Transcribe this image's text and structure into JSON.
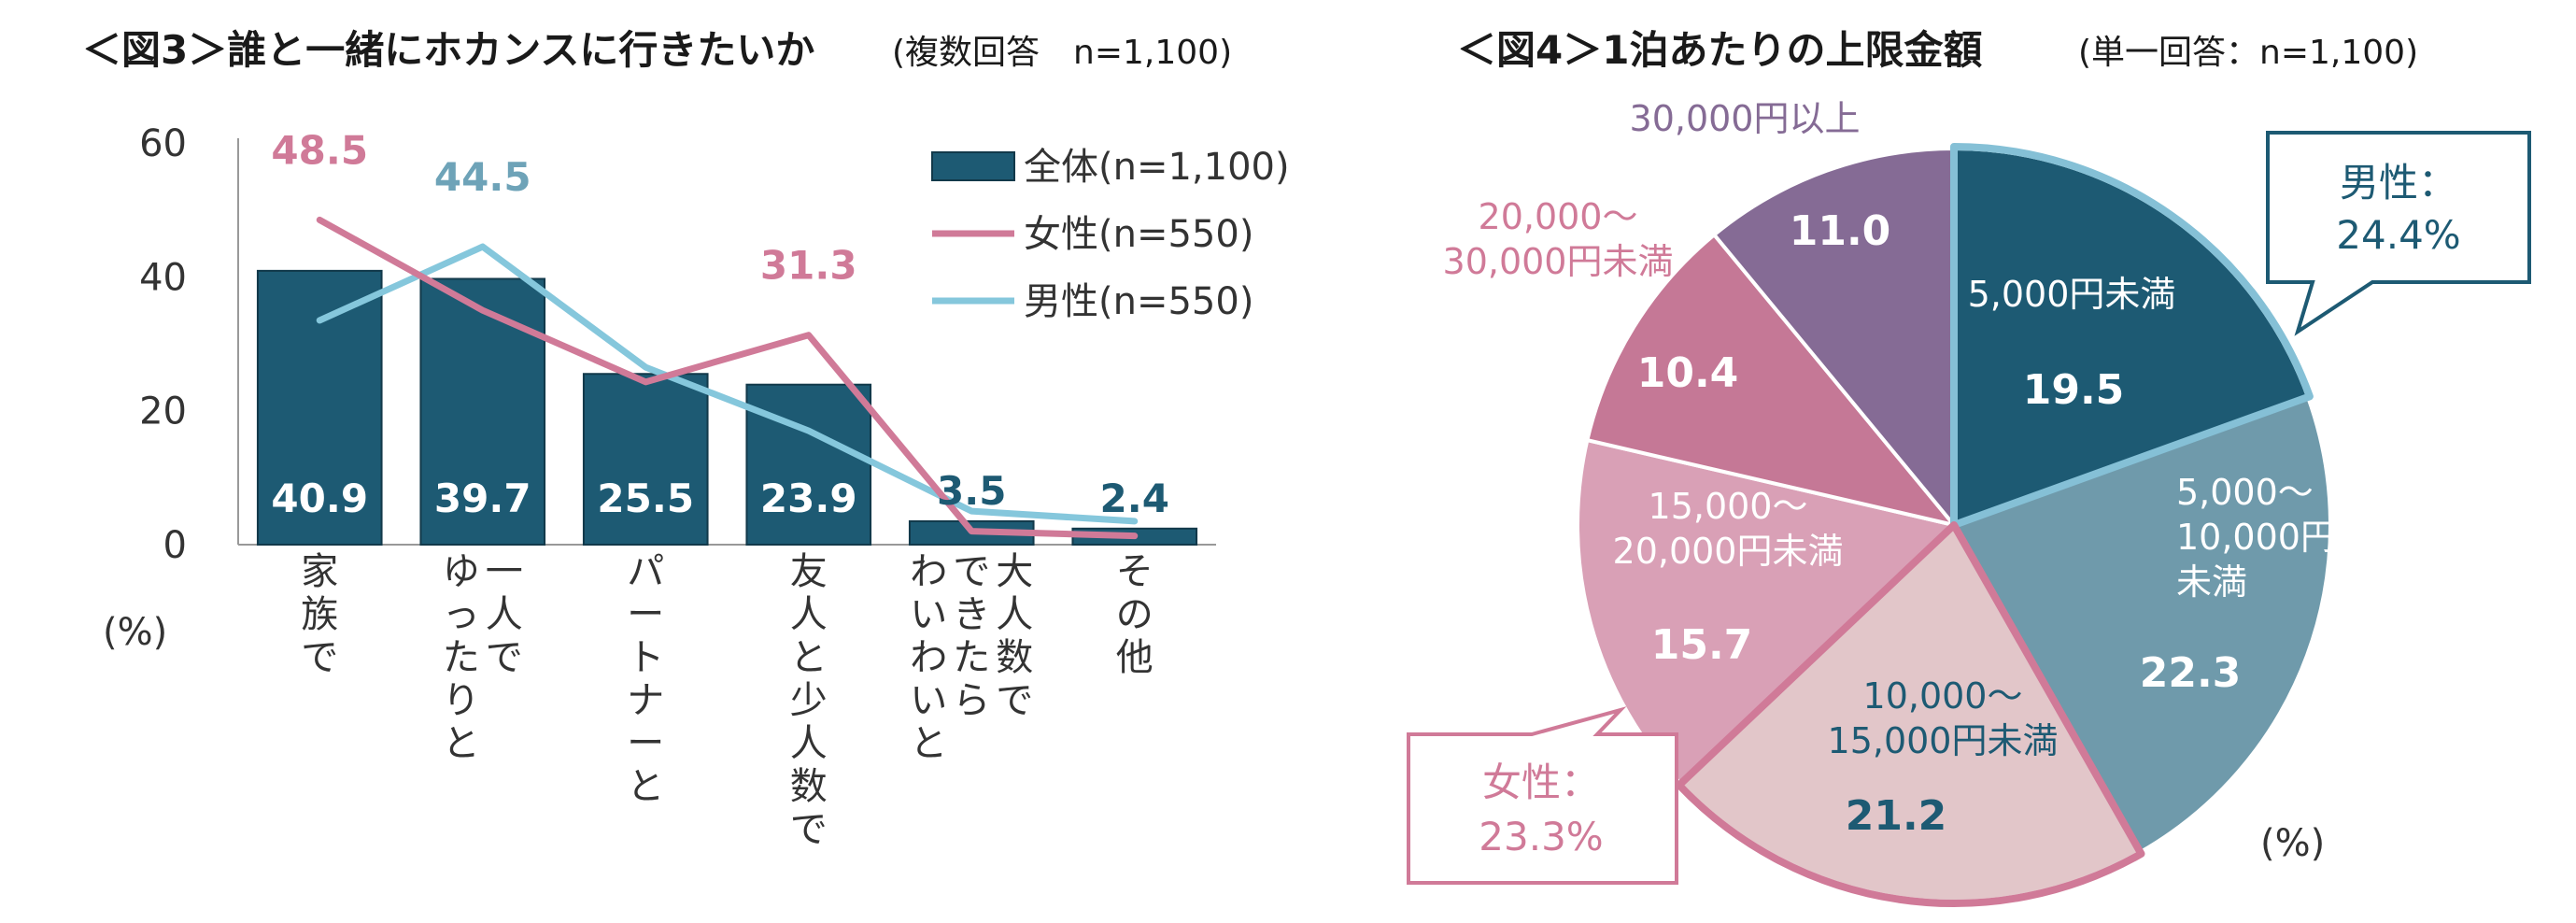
{
  "fig3": {
    "title": "＜図3＞誰と一緒にホカンスに行きたいか",
    "note": "(複数回答　n=1,100)",
    "unit": "(%)"
  },
  "fig4": {
    "title": "＜図4＞1泊あたりの上限金額",
    "note": "(単一回答：n=1,100)",
    "unit": "(%)",
    "callout_male_label": "男性：",
    "callout_male_value": "24.4%",
    "callout_female_label": "女性：",
    "callout_female_value": "23.3%"
  },
  "colors": {
    "bar": "#1d5a73",
    "female": "#d07a98",
    "male": "#85c7dc",
    "pie_band_text_light": "#ffffff"
  },
  "chart_data": [
    {
      "type": "bar",
      "title": "誰と一緒にホカンスに行きたいか",
      "ylabel": "(%)",
      "ylim": [
        0,
        60
      ],
      "yticks": [
        0,
        20,
        40,
        60
      ],
      "categories": [
        [
          "家族で"
        ],
        [
          "一人で",
          "ゆったりと"
        ],
        [
          "パートナーと"
        ],
        [
          "友人と少人数で"
        ],
        [
          "大人数で",
          "できたら",
          "わいわいと"
        ],
        [
          "その他"
        ]
      ],
      "series": [
        {
          "name": "全体(n=1,100)",
          "kind": "bar",
          "values": [
            40.9,
            39.7,
            25.5,
            23.9,
            3.5,
            2.4
          ],
          "labels": [
            "40.9",
            "39.7",
            "25.5",
            "23.9",
            "3.5",
            "2.4"
          ]
        },
        {
          "name": "女性(n=550)",
          "kind": "line",
          "values": [
            48.5,
            35.0,
            24.3,
            31.3,
            2.0,
            1.3
          ],
          "labels": [
            "48.5",
            "",
            "",
            "31.3",
            "",
            ""
          ]
        },
        {
          "name": "男性(n=550)",
          "kind": "line",
          "values": [
            33.5,
            44.5,
            26.5,
            17.0,
            5.0,
            3.5
          ],
          "labels": [
            "",
            "44.5",
            "",
            "",
            "",
            ""
          ]
        }
      ]
    },
    {
      "type": "pie",
      "title": "1泊あたりの上限金額",
      "unit": "(%)",
      "slices": [
        {
          "label": [
            "5,000円未満"
          ],
          "value": 19.5,
          "display": "19.5",
          "color": "#1d5a73"
        },
        {
          "label": [
            "5,000～",
            "10,000円",
            "未満"
          ],
          "value": 22.3,
          "display": "22.3",
          "color": "#6f9aab"
        },
        {
          "label": [
            "10,000～",
            "15,000円未満"
          ],
          "value": 21.2,
          "display": "21.2",
          "color": "#e2c6c9"
        },
        {
          "label": [
            "15,000～",
            "20,000円未満"
          ],
          "value": 15.7,
          "display": "15.7",
          "color": "#d9a0b6"
        },
        {
          "label": [
            "20,000～",
            "30,000円未満"
          ],
          "value": 10.4,
          "display": "10.4",
          "color": "#c57896"
        },
        {
          "label": [
            "30,000円以上"
          ],
          "value": 11.0,
          "display": "11.0",
          "color": "#856b95"
        }
      ]
    }
  ]
}
